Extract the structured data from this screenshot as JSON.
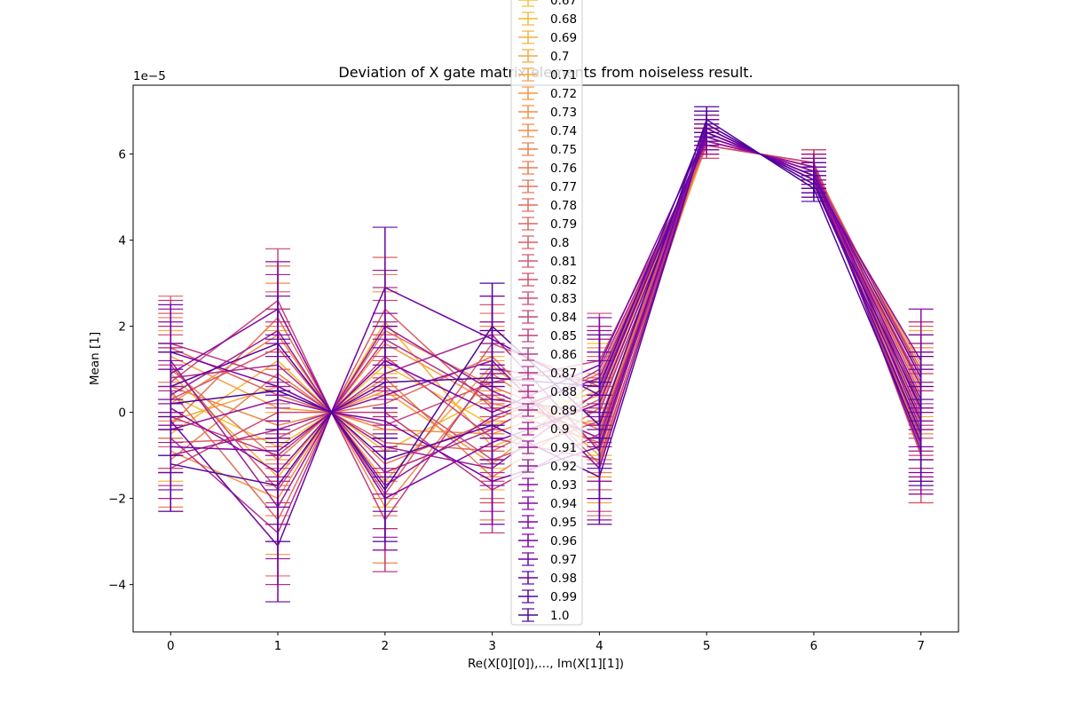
{
  "chart_data": {
    "type": "line",
    "title": "Deviation of X gate matrix elements from noiseless result.",
    "xlabel": "Re(X[0][0]),..., Im(X[1][1])",
    "ylabel": "Mean [1]",
    "y_offset_text": "1e−5",
    "x": [
      0,
      1,
      1.5,
      2,
      3,
      4,
      5,
      5.5,
      6,
      7
    ],
    "x_ticks": [
      0,
      1,
      2,
      3,
      4,
      5,
      6,
      7
    ],
    "y_ticks": [
      -4,
      -2,
      0,
      2,
      4,
      6
    ],
    "y_tick_labels": [
      "−4",
      "−2",
      "0",
      "2",
      "4",
      "6"
    ],
    "xlim": [
      -0.35,
      7.35
    ],
    "ylim": [
      -5.1,
      7.6
    ],
    "y_unit_scale": 1e-05,
    "colormap": "plasma",
    "grid": false,
    "legend_location": "upper center",
    "legend_visible_labels": [
      "0.67",
      "0.68",
      "0.69",
      "0.7",
      "0.71",
      "0.72",
      "0.73",
      "0.74",
      "0.75",
      "0.76",
      "0.77",
      "0.78",
      "0.79",
      "0.8",
      "0.81",
      "0.82",
      "0.83",
      "0.84",
      "0.85",
      "0.86",
      "0.87",
      "0.88",
      "0.89",
      "0.9",
      "0.91",
      "0.92",
      "0.93",
      "0.94",
      "0.95",
      "0.96",
      "0.97",
      "0.98",
      "0.99",
      "1.0"
    ],
    "series": [
      {
        "name": "0.67",
        "values": [
          0.4,
          -0.8,
          0,
          1.1,
          -0.3,
          0.5,
          6.3,
          6.0,
          5.7,
          0.6
        ],
        "errors": [
          1.0,
          1.3,
          0,
          1.2,
          1.0,
          1.1,
          0.3,
          0,
          0.3,
          1.0
        ]
      },
      {
        "name": "0.68",
        "values": [
          -0.5,
          1.2,
          0,
          -0.9,
          0.4,
          -0.6,
          6.2,
          6.0,
          5.8,
          -0.4
        ],
        "errors": [
          1.1,
          1.2,
          0,
          1.3,
          0.9,
          1.0,
          0.3,
          0,
          0.3,
          1.1
        ]
      },
      {
        "name": "0.69",
        "values": [
          0.9,
          -1.5,
          0,
          2.1,
          -0.8,
          0.2,
          6.4,
          6.0,
          5.6,
          0.9
        ],
        "errors": [
          1.0,
          1.1,
          0,
          1.2,
          1.0,
          1.2,
          0.3,
          0,
          0.3,
          1.0
        ]
      },
      {
        "name": "0.7",
        "values": [
          -0.2,
          0.6,
          0,
          -1.6,
          1.1,
          -1.0,
          6.3,
          6.0,
          5.7,
          -0.7
        ],
        "errors": [
          1.2,
          1.3,
          0,
          1.1,
          1.0,
          1.1,
          0.3,
          0,
          0.3,
          1.2
        ]
      },
      {
        "name": "0.71",
        "values": [
          1.3,
          0.1,
          0,
          0.5,
          -1.2,
          0.8,
          6.2,
          6.0,
          5.8,
          0.2
        ],
        "errors": [
          1.0,
          1.2,
          0,
          1.3,
          0.9,
          1.0,
          0.3,
          0,
          0.3,
          1.1
        ]
      },
      {
        "name": "0.72",
        "values": [
          -0.9,
          -2.0,
          0,
          1.6,
          0.2,
          -0.3,
          6.5,
          6.0,
          5.5,
          1.1
        ],
        "errors": [
          1.1,
          1.3,
          0,
          1.2,
          1.0,
          1.2,
          0.3,
          0,
          0.3,
          1.0
        ]
      },
      {
        "name": "0.73",
        "values": [
          0.2,
          1.8,
          0,
          -0.4,
          -0.5,
          0.4,
          6.3,
          6.0,
          5.7,
          -0.2
        ],
        "errors": [
          1.2,
          1.2,
          0,
          1.2,
          1.0,
          1.1,
          0.3,
          0,
          0.3,
          1.1
        ]
      },
      {
        "name": "0.74",
        "values": [
          0.6,
          -0.3,
          0,
          -2.2,
          0.9,
          -0.8,
          6.4,
          6.0,
          5.6,
          0.5
        ],
        "errors": [
          1.0,
          1.3,
          0,
          1.3,
          1.1,
          1.0,
          0.3,
          0,
          0.3,
          1.0
        ]
      },
      {
        "name": "0.75",
        "values": [
          -1.1,
          0.9,
          0,
          0.8,
          -1.5,
          0.1,
          6.2,
          6.0,
          5.8,
          -0.9
        ],
        "errors": [
          1.1,
          1.1,
          0,
          1.2,
          1.0,
          1.2,
          0.3,
          0,
          0.3,
          1.2
        ]
      },
      {
        "name": "0.76",
        "values": [
          1.0,
          -1.1,
          0,
          1.9,
          0.6,
          -0.4,
          6.5,
          6.0,
          5.5,
          0.3
        ],
        "errors": [
          1.2,
          1.3,
          0,
          1.3,
          1.0,
          1.0,
          0.3,
          0,
          0.3,
          1.1
        ]
      },
      {
        "name": "0.77",
        "values": [
          -0.3,
          2.2,
          0,
          -1.2,
          -0.2,
          0.9,
          6.3,
          6.0,
          5.7,
          0.8
        ],
        "errors": [
          1.0,
          1.2,
          0,
          1.2,
          0.9,
          1.1,
          0.3,
          0,
          0.3,
          1.0
        ]
      },
      {
        "name": "0.78",
        "values": [
          0.5,
          -2.5,
          0,
          0.2,
          1.3,
          -1.2,
          6.4,
          6.0,
          5.6,
          -0.5
        ],
        "errors": [
          1.1,
          1.3,
          0,
          1.1,
          1.0,
          1.2,
          0.3,
          0,
          0.3,
          1.1
        ]
      },
      {
        "name": "0.79",
        "values": [
          1.5,
          0.4,
          0,
          -0.7,
          -0.9,
          0.3,
          6.2,
          6.0,
          5.8,
          0.1
        ],
        "errors": [
          1.2,
          1.2,
          0,
          1.3,
          1.1,
          1.0,
          0.3,
          0,
          0.3,
          1.2
        ]
      },
      {
        "name": "0.8",
        "values": [
          -0.7,
          -0.6,
          0,
          2.4,
          0.1,
          -0.7,
          6.5,
          6.0,
          5.5,
          1.0
        ],
        "errors": [
          1.0,
          1.1,
          0,
          1.2,
          1.0,
          1.1,
          0.3,
          0,
          0.3,
          1.0
        ]
      },
      {
        "name": "0.81",
        "values": [
          0.3,
          1.5,
          0,
          -1.9,
          1.6,
          0.6,
          6.3,
          6.0,
          5.7,
          -1.0
        ],
        "errors": [
          1.1,
          1.3,
          0,
          1.3,
          0.9,
          1.2,
          0.3,
          0,
          0.3,
          1.1
        ]
      },
      {
        "name": "0.82",
        "values": [
          1.1,
          -1.8,
          0,
          0.6,
          -1.1,
          -0.2,
          6.4,
          6.0,
          5.6,
          0.4
        ],
        "errors": [
          1.2,
          1.2,
          0,
          1.2,
          1.0,
          1.0,
          0.3,
          0,
          0.3,
          1.0
        ]
      },
      {
        "name": "0.83",
        "values": [
          -1.3,
          0.0,
          0,
          -0.3,
          0.7,
          1.2,
          6.2,
          6.0,
          5.8,
          -0.3
        ],
        "errors": [
          1.0,
          1.3,
          0,
          1.1,
          1.1,
          1.1,
          0.3,
          0,
          0.3,
          1.2
        ]
      },
      {
        "name": "0.84",
        "values": [
          0.7,
          2.6,
          0,
          1.3,
          -0.6,
          -1.1,
          6.6,
          6.0,
          5.4,
          0.7
        ],
        "errors": [
          1.1,
          1.2,
          0,
          1.3,
          1.0,
          1.2,
          0.3,
          0,
          0.3,
          1.1
        ]
      },
      {
        "name": "0.85",
        "values": [
          -0.1,
          -1.0,
          0,
          -2.5,
          1.0,
          0.7,
          6.3,
          6.0,
          5.7,
          0.0
        ],
        "errors": [
          1.2,
          1.1,
          0,
          1.2,
          0.9,
          1.0,
          0.3,
          0,
          0.3,
          1.0
        ]
      },
      {
        "name": "0.86",
        "values": [
          1.6,
          0.8,
          0,
          0.0,
          -1.8,
          -0.5,
          6.5,
          6.0,
          5.5,
          -0.6
        ],
        "errors": [
          1.0,
          1.3,
          0,
          1.3,
          1.0,
          1.1,
          0.3,
          0,
          0.3,
          1.1
        ]
      },
      {
        "name": "0.87",
        "values": [
          -0.6,
          -2.8,
          0,
          1.7,
          0.3,
          0.0,
          6.4,
          6.0,
          5.6,
          0.9
        ],
        "errors": [
          1.1,
          1.2,
          0,
          1.2,
          1.1,
          1.2,
          0.3,
          0,
          0.3,
          1.2
        ]
      },
      {
        "name": "0.88",
        "values": [
          0.8,
          1.1,
          0,
          -1.4,
          -0.4,
          1.0,
          6.3,
          6.0,
          5.7,
          -0.8
        ],
        "errors": [
          1.2,
          1.3,
          0,
          1.3,
          1.0,
          1.0,
          0.3,
          0,
          0.3,
          1.0
        ]
      },
      {
        "name": "0.89",
        "values": [
          -1.0,
          -0.4,
          0,
          0.9,
          1.8,
          -0.9,
          6.6,
          6.0,
          5.4,
          0.2
        ],
        "errors": [
          1.0,
          1.1,
          0,
          1.2,
          0.9,
          1.1,
          0.3,
          0,
          0.3,
          1.1
        ]
      },
      {
        "name": "0.9",
        "values": [
          0.4,
          1.9,
          0,
          -0.8,
          -1.3,
          0.5,
          6.4,
          6.0,
          5.6,
          -0.1
        ],
        "errors": [
          1.1,
          1.3,
          0,
          1.1,
          1.0,
          1.2,
          0.3,
          0,
          0.3,
          1.2
        ]
      },
      {
        "name": "0.91",
        "values": [
          1.2,
          -2.2,
          0,
          2.0,
          0.5,
          -0.6,
          6.5,
          6.0,
          5.5,
          0.6
        ],
        "errors": [
          1.2,
          1.2,
          0,
          1.3,
          1.1,
          1.0,
          0.3,
          0,
          0.3,
          1.0
        ]
      },
      {
        "name": "0.92",
        "values": [
          -0.4,
          0.3,
          0,
          -1.7,
          -0.1,
          0.8,
          6.3,
          6.0,
          5.7,
          -0.4
        ],
        "errors": [
          1.0,
          1.3,
          0,
          1.2,
          1.0,
          1.1,
          0.3,
          0,
          0.3,
          1.1
        ]
      },
      {
        "name": "0.93",
        "values": [
          0.1,
          -1.4,
          0,
          0.4,
          1.2,
          -1.3,
          6.6,
          6.0,
          5.4,
          1.2
        ],
        "errors": [
          1.1,
          1.2,
          0,
          1.3,
          0.9,
          1.2,
          0.3,
          0,
          0.3,
          1.2
        ]
      },
      {
        "name": "0.94",
        "values": [
          0.9,
          2.4,
          0,
          -2.0,
          -0.7,
          0.2,
          6.4,
          6.0,
          5.6,
          -0.9
        ],
        "errors": [
          1.2,
          1.1,
          0,
          1.2,
          1.0,
          1.0,
          0.3,
          0,
          0.3,
          1.0
        ]
      },
      {
        "name": "0.95",
        "values": [
          -0.8,
          -0.9,
          0,
          1.2,
          0.0,
          1.1,
          6.5,
          6.0,
          5.5,
          0.3
        ],
        "errors": [
          1.0,
          1.3,
          0,
          1.1,
          1.1,
          1.1,
          0.3,
          0,
          0.3,
          1.1
        ]
      },
      {
        "name": "0.96",
        "values": [
          1.4,
          0.6,
          0,
          -0.2,
          -1.6,
          -0.8,
          6.7,
          6.0,
          5.3,
          -0.2
        ],
        "errors": [
          1.1,
          1.2,
          0,
          1.3,
          1.0,
          1.2,
          0.3,
          0,
          0.3,
          1.2
        ]
      },
      {
        "name": "0.97",
        "values": [
          -0.2,
          -3.1,
          0,
          2.9,
          1.7,
          0.4,
          6.5,
          6.0,
          5.5,
          0.8
        ],
        "errors": [
          1.2,
          1.3,
          0,
          1.4,
          1.0,
          1.0,
          0.3,
          0,
          0.3,
          1.0
        ]
      },
      {
        "name": "0.98",
        "values": [
          0.6,
          1.6,
          0,
          -1.1,
          -0.3,
          -1.5,
          6.6,
          6.0,
          5.4,
          -0.5
        ],
        "errors": [
          1.0,
          1.1,
          0,
          1.2,
          0.9,
          1.1,
          0.3,
          0,
          0.3,
          1.1
        ]
      },
      {
        "name": "0.99",
        "values": [
          -1.2,
          -1.7,
          0,
          0.7,
          0.8,
          0.6,
          6.7,
          6.0,
          5.3,
          0.1
        ],
        "errors": [
          1.1,
          1.3,
          0,
          1.3,
          1.1,
          1.2,
          0.3,
          0,
          0.3,
          1.2
        ]
      },
      {
        "name": "1.0",
        "values": [
          0.2,
          0.5,
          0,
          -1.8,
          2.0,
          -0.3,
          6.8,
          6.0,
          5.2,
          -0.7
        ],
        "errors": [
          1.2,
          1.2,
          0,
          1.2,
          1.0,
          1.0,
          0.3,
          0,
          0.3,
          1.0
        ]
      }
    ]
  }
}
